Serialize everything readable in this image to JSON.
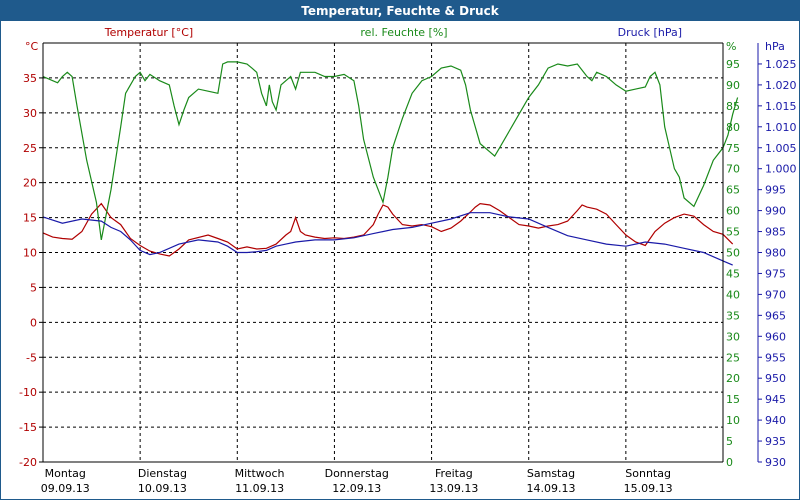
{
  "title": "Temperatur, Feuchte & Druck",
  "chart_data": {
    "type": "line",
    "grid": true,
    "x_labels": [
      {
        "day": "Montag",
        "date": "09.09.13"
      },
      {
        "day": "Dienstag",
        "date": "10.09.13"
      },
      {
        "day": "Mittwoch",
        "date": "11.09.13"
      },
      {
        "day": "Donnerstag",
        "date": "12.09.13"
      },
      {
        "day": "Freitag",
        "date": "13.09.13"
      },
      {
        "day": "Samstag",
        "date": "14.09.13"
      },
      {
        "day": "Sonntag",
        "date": "15.09.13"
      }
    ],
    "x_range_days": [
      0,
      7
    ],
    "axes": {
      "temperature": {
        "label": "Temperatur [°C]",
        "unit": "°C",
        "min": -20,
        "max": 40,
        "step": 5,
        "color": "#b00000"
      },
      "humidity": {
        "label": "rel. Feuchte [%]",
        "unit": "%",
        "min": 0,
        "max": 100,
        "step": 5,
        "color": "#1a8a1a"
      },
      "pressure": {
        "label": "Druck [hPa]",
        "unit": "hPa",
        "min": 930,
        "max": 1030,
        "step": 5,
        "color": "#1a1aa8"
      }
    },
    "pressure_tick_labels": [
      "930",
      "935",
      "940",
      "945",
      "950",
      "955",
      "960",
      "965",
      "970",
      "975",
      "980",
      "985",
      "990",
      "995",
      "1.000",
      "1.005",
      "1.010",
      "1.015",
      "1.020",
      "1.025"
    ],
    "series": [
      {
        "name": "Temperatur [°C]",
        "axis": "temperature",
        "color": "#b00000",
        "points": [
          [
            0,
            12.8
          ],
          [
            0.1,
            12.2
          ],
          [
            0.2,
            12
          ],
          [
            0.3,
            11.9
          ],
          [
            0.4,
            13
          ],
          [
            0.5,
            15.5
          ],
          [
            0.6,
            17
          ],
          [
            0.7,
            15
          ],
          [
            0.8,
            14
          ],
          [
            0.9,
            12
          ],
          [
            1.0,
            11
          ],
          [
            1.1,
            10.2
          ],
          [
            1.2,
            9.8
          ],
          [
            1.3,
            9.5
          ],
          [
            1.4,
            10.5
          ],
          [
            1.5,
            11.8
          ],
          [
            1.7,
            12.5
          ],
          [
            1.8,
            12
          ],
          [
            1.9,
            11.5
          ],
          [
            2.0,
            10.5
          ],
          [
            2.1,
            10.8
          ],
          [
            2.2,
            10.5
          ],
          [
            2.3,
            10.6
          ],
          [
            2.4,
            11.2
          ],
          [
            2.5,
            12.5
          ],
          [
            2.55,
            13
          ],
          [
            2.6,
            15
          ],
          [
            2.65,
            13
          ],
          [
            2.7,
            12.5
          ],
          [
            2.8,
            12.2
          ],
          [
            2.9,
            12
          ],
          [
            3.0,
            12.1
          ],
          [
            3.1,
            12
          ],
          [
            3.2,
            12.2
          ],
          [
            3.3,
            12.5
          ],
          [
            3.4,
            14
          ],
          [
            3.45,
            15.5
          ],
          [
            3.5,
            16.8
          ],
          [
            3.55,
            16.5
          ],
          [
            3.6,
            15.5
          ],
          [
            3.7,
            14
          ],
          [
            3.8,
            13.8
          ],
          [
            3.9,
            14
          ],
          [
            4.0,
            13.7
          ],
          [
            4.1,
            13
          ],
          [
            4.2,
            13.5
          ],
          [
            4.3,
            14.5
          ],
          [
            4.4,
            15.8
          ],
          [
            4.45,
            16.5
          ],
          [
            4.5,
            17
          ],
          [
            4.6,
            16.8
          ],
          [
            4.7,
            16
          ],
          [
            4.8,
            15
          ],
          [
            4.9,
            14
          ],
          [
            5.0,
            13.8
          ],
          [
            5.1,
            13.5
          ],
          [
            5.2,
            13.8
          ],
          [
            5.3,
            14
          ],
          [
            5.4,
            14.5
          ],
          [
            5.5,
            16
          ],
          [
            5.55,
            16.8
          ],
          [
            5.6,
            16.5
          ],
          [
            5.7,
            16.2
          ],
          [
            5.8,
            15.5
          ],
          [
            5.9,
            14
          ],
          [
            6.0,
            12.5
          ],
          [
            6.1,
            11.5
          ],
          [
            6.2,
            11
          ],
          [
            6.3,
            13
          ],
          [
            6.4,
            14.2
          ],
          [
            6.5,
            15
          ],
          [
            6.6,
            15.5
          ],
          [
            6.7,
            15.2
          ],
          [
            6.8,
            14
          ],
          [
            6.9,
            13
          ],
          [
            7.0,
            12.6
          ],
          [
            7.1,
            11.2
          ]
        ]
      },
      {
        "name": "rel. Feuchte [%]",
        "axis": "humidity",
        "color": "#1a8a1a",
        "points": [
          [
            0,
            92
          ],
          [
            0.1,
            91
          ],
          [
            0.15,
            90.5
          ],
          [
            0.2,
            92
          ],
          [
            0.25,
            93
          ],
          [
            0.3,
            92
          ],
          [
            0.35,
            85
          ],
          [
            0.45,
            72
          ],
          [
            0.55,
            62
          ],
          [
            0.6,
            53
          ],
          [
            0.7,
            65
          ],
          [
            0.8,
            80
          ],
          [
            0.85,
            88
          ],
          [
            0.95,
            92
          ],
          [
            1.0,
            93
          ],
          [
            1.05,
            91
          ],
          [
            1.1,
            92.5
          ],
          [
            1.2,
            91
          ],
          [
            1.3,
            90
          ],
          [
            1.35,
            85
          ],
          [
            1.4,
            80.5
          ],
          [
            1.45,
            84
          ],
          [
            1.5,
            87
          ],
          [
            1.6,
            89
          ],
          [
            1.7,
            88.5
          ],
          [
            1.8,
            88
          ],
          [
            1.85,
            95
          ],
          [
            1.9,
            95.5
          ],
          [
            2.0,
            95.5
          ],
          [
            2.1,
            95
          ],
          [
            2.15,
            94
          ],
          [
            2.2,
            93
          ],
          [
            2.25,
            88
          ],
          [
            2.3,
            85
          ],
          [
            2.33,
            90
          ],
          [
            2.36,
            86
          ],
          [
            2.4,
            84
          ],
          [
            2.45,
            90
          ],
          [
            2.5,
            91
          ],
          [
            2.55,
            92
          ],
          [
            2.6,
            89
          ],
          [
            2.65,
            93
          ],
          [
            2.7,
            93
          ],
          [
            2.8,
            93
          ],
          [
            2.9,
            92
          ],
          [
            3.0,
            92
          ],
          [
            3.1,
            92.5
          ],
          [
            3.2,
            91
          ],
          [
            3.25,
            85
          ],
          [
            3.3,
            77
          ],
          [
            3.4,
            68
          ],
          [
            3.5,
            62
          ],
          [
            3.55,
            68
          ],
          [
            3.6,
            75
          ],
          [
            3.7,
            82
          ],
          [
            3.8,
            88
          ],
          [
            3.9,
            91
          ],
          [
            4.0,
            92
          ],
          [
            4.1,
            94
          ],
          [
            4.2,
            94.5
          ],
          [
            4.3,
            93.5
          ],
          [
            4.35,
            90
          ],
          [
            4.4,
            84
          ],
          [
            4.5,
            76
          ],
          [
            4.6,
            74
          ],
          [
            4.65,
            73
          ],
          [
            4.7,
            75
          ],
          [
            4.8,
            79
          ],
          [
            4.9,
            83
          ],
          [
            5.0,
            87
          ],
          [
            5.1,
            90
          ],
          [
            5.2,
            94
          ],
          [
            5.3,
            95
          ],
          [
            5.4,
            94.5
          ],
          [
            5.5,
            95
          ],
          [
            5.6,
            92
          ],
          [
            5.65,
            91
          ],
          [
            5.7,
            93
          ],
          [
            5.8,
            92
          ],
          [
            5.9,
            90
          ],
          [
            6.0,
            88.5
          ],
          [
            6.1,
            89
          ],
          [
            6.2,
            89.5
          ],
          [
            6.25,
            92
          ],
          [
            6.3,
            93
          ],
          [
            6.35,
            90
          ],
          [
            6.4,
            80
          ],
          [
            6.5,
            70
          ],
          [
            6.55,
            68
          ],
          [
            6.6,
            63
          ],
          [
            6.7,
            61
          ],
          [
            6.8,
            66
          ],
          [
            6.9,
            72
          ],
          [
            7.0,
            75
          ],
          [
            7.05,
            78
          ],
          [
            7.1,
            83
          ],
          [
            7.15,
            87
          ]
        ]
      },
      {
        "name": "Druck [hPa]",
        "axis": "pressure",
        "color": "#1a1aa8",
        "points": [
          [
            0,
            988.5
          ],
          [
            0.2,
            987
          ],
          [
            0.4,
            988
          ],
          [
            0.6,
            987.5
          ],
          [
            0.7,
            986
          ],
          [
            0.8,
            985
          ],
          [
            0.9,
            983
          ],
          [
            1.0,
            980.5
          ],
          [
            1.1,
            979.5
          ],
          [
            1.2,
            980
          ],
          [
            1.4,
            982
          ],
          [
            1.6,
            983
          ],
          [
            1.8,
            982.5
          ],
          [
            1.9,
            981.5
          ],
          [
            2.0,
            980
          ],
          [
            2.1,
            980
          ],
          [
            2.2,
            980.2
          ],
          [
            2.3,
            980.5
          ],
          [
            2.4,
            981.5
          ],
          [
            2.5,
            982
          ],
          [
            2.6,
            982.5
          ],
          [
            2.8,
            983
          ],
          [
            3.0,
            983
          ],
          [
            3.2,
            983.5
          ],
          [
            3.4,
            984.5
          ],
          [
            3.6,
            985.5
          ],
          [
            3.8,
            986
          ],
          [
            4.0,
            987
          ],
          [
            4.2,
            988
          ],
          [
            4.4,
            989.5
          ],
          [
            4.6,
            989.5
          ],
          [
            4.8,
            988.5
          ],
          [
            5.0,
            988
          ],
          [
            5.2,
            986
          ],
          [
            5.4,
            984
          ],
          [
            5.6,
            983
          ],
          [
            5.8,
            982
          ],
          [
            6.0,
            981.5
          ],
          [
            6.2,
            982.5
          ],
          [
            6.4,
            982
          ],
          [
            6.6,
            981
          ],
          [
            6.8,
            980
          ],
          [
            7.0,
            978
          ],
          [
            7.1,
            977
          ]
        ]
      }
    ]
  }
}
